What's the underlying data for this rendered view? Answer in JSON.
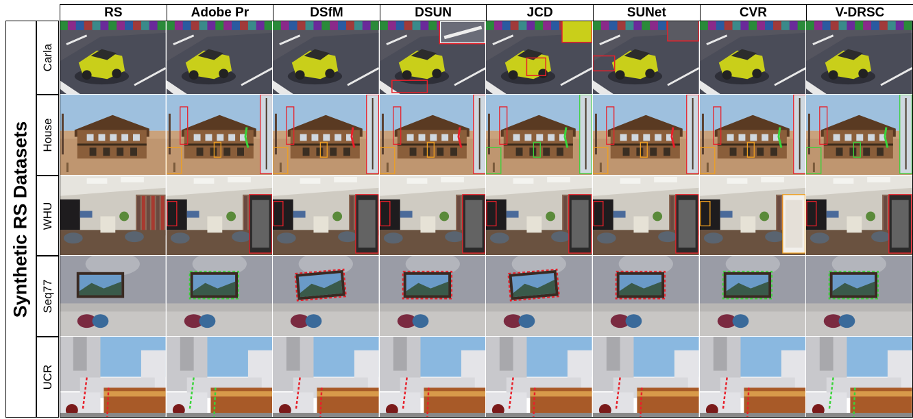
{
  "figure": {
    "group_label": "Synthetic RS Datasets",
    "columns": [
      "RS",
      "Adobe Pr",
      "DSfM",
      "DSUN",
      "JCD",
      "SUNet",
      "CVR",
      "V-DRSC"
    ],
    "rows": [
      "Carla",
      "House",
      "WHU",
      "Seq77",
      "UCR"
    ]
  },
  "colors": {
    "highlight_red": "#e8202a",
    "highlight_green": "#3ad43a",
    "highlight_orange": "#f0a020"
  }
}
